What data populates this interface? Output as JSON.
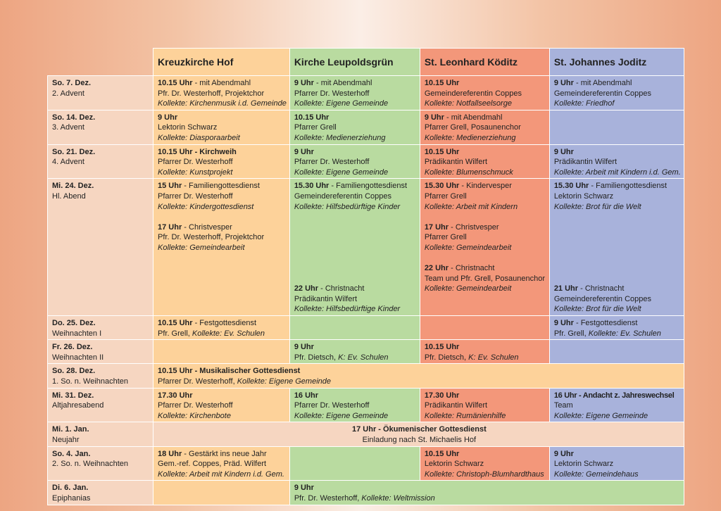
{
  "headers": [
    "Kreuzkirche Hof",
    "Kirche Leupoldsgrün",
    "St. Leonhard Köditz",
    "St. Johannes Joditz"
  ],
  "rows": [
    {
      "date": "So. 7. Dez.",
      "sub": "2. Advent",
      "k": {
        "time": "10.15 Uhr",
        "note": " -  mit Abendmahl",
        "lines": [
          "Pfr. Dr. Westerhoff, Projektchor"
        ],
        "coll": "Kollekte: Kirchenmusik i.d. Gemeinde"
      },
      "l": {
        "time": "9 Uhr",
        "note": " - mit Abendmahl",
        "lines": [
          "Pfarrer Dr. Westerhoff"
        ],
        "coll": "Kollekte: Eigene Gemeinde"
      },
      "sl": {
        "time": "10.15 Uhr",
        "note": "",
        "lines": [
          "Gemeindereferentin Coppes"
        ],
        "coll": "Kollekte: Notfallseelsorge"
      },
      "sj": {
        "time": "9 Uhr",
        "note": " - mit Abendmahl",
        "lines": [
          "Gemeindereferentin Coppes"
        ],
        "coll": "Kollekte: Friedhof"
      }
    },
    {
      "date": "So. 14. Dez.",
      "sub": "3. Advent",
      "k": {
        "time": "9 Uhr",
        "note": "",
        "lines": [
          "Lektorin Schwarz"
        ],
        "coll": "Kollekte: Diasporaarbeit"
      },
      "l": {
        "time": "10.15 Uhr",
        "note": "",
        "lines": [
          "Pfarrer Grell"
        ],
        "coll": "Kollekte: Medienerziehung"
      },
      "sl": {
        "time": "9 Uhr",
        "note": " - mit Abendmahl",
        "lines": [
          "Pfarrer Grell, Posaunenchor"
        ],
        "coll": "Kollekte: Medienerziehung"
      }
    },
    {
      "date": "So. 21. Dez.",
      "sub": "4. Advent",
      "k": {
        "time": "10.15 Uhr - Kirchweih",
        "note": "",
        "lines": [
          "Pfarrer Dr. Westerhoff"
        ],
        "coll": "Kollekte: Kunstprojekt"
      },
      "l": {
        "time": "9 Uhr",
        "note": "",
        "lines": [
          "Pfarrer Dr. Westerhoff"
        ],
        "coll": "Kollekte: Eigene Gemeinde"
      },
      "sl": {
        "time": "10.15 Uhr",
        "note": "",
        "lines": [
          "Prädikantin Wilfert"
        ],
        "coll": "Kollekte: Blumenschmuck"
      },
      "sj": {
        "time": "9 Uhr",
        "note": "",
        "lines": [
          "Prädikantin Wilfert"
        ],
        "coll": "Kollekte: Arbeit mit Kindern i.d. Gem."
      }
    },
    {
      "date": "Mi. 24. Dez.",
      "sub": "Hl. Abend",
      "k1": {
        "time": "15 Uhr",
        "note": " - Familiengottesdienst",
        "lines": [
          "Pfarrer Dr. Westerhoff"
        ],
        "coll": "Kollekte: Kindergottesdienst"
      },
      "k2": {
        "time": "17 Uhr",
        "note": " - Christvesper",
        "lines": [
          "Pfr. Dr. Westerhoff, Projektchor"
        ],
        "coll": "Kollekte: Gemeindearbeit"
      },
      "l1": {
        "time": "15.30 Uhr",
        "note": " - Familiengottesdienst",
        "lines": [
          "Gemeindereferentin Coppes"
        ],
        "coll": "Kollekte: Hilfsbedürftige Kinder"
      },
      "l2": {
        "time": "22 Uhr",
        "note": " - Christnacht",
        "lines": [
          "Prädikantin Wilfert"
        ],
        "coll": "Kollekte: Hilfsbedürftige Kinder"
      },
      "sl1": {
        "time": "15.30 Uhr",
        "note": " - Kindervesper",
        "lines": [
          "Pfarrer Grell"
        ],
        "coll": "Kollekte: Arbeit mit Kindern"
      },
      "sl2": {
        "time": "17 Uhr",
        "note": " - Christvesper",
        "lines": [
          "Pfarrer Grell"
        ],
        "coll": "Kollekte: Gemeindearbeit"
      },
      "sl3": {
        "time": "22 Uhr",
        "note": " - Christnacht",
        "lines": [
          "Team und Pfr. Grell, Posaunenchor"
        ],
        "coll": "Kollekte: Gemeindearbeit"
      },
      "sj1": {
        "time": "15.30 Uhr",
        "note": " - Familiengottesdienst",
        "lines": [
          "Lektorin Schwarz"
        ],
        "coll": "Kollekte: Brot für die Welt"
      },
      "sj2": {
        "time": "21 Uhr",
        "note": " - Christnacht",
        "lines": [
          "Gemeindereferentin Coppes"
        ],
        "coll": "Kollekte: Brot für die Welt"
      }
    },
    {
      "date": "Do. 25. Dez.",
      "sub": "Weihnachten I",
      "k": {
        "time": "10.15 Uhr",
        "note": " - Festgottesdienst",
        "lead": "Pfr. Grell, ",
        "coll": "Kollekte: Ev. Schulen"
      },
      "sj": {
        "time": "9 Uhr",
        "note": " - Festgottesdienst",
        "lead": "Pfr. Grell, ",
        "coll": "Kollekte: Ev. Schulen"
      }
    },
    {
      "date": "Fr. 26. Dez.",
      "sub": "Weihnachten II",
      "l": {
        "time": "9 Uhr",
        "note": "",
        "lead": "Pfr. Dietsch, ",
        "coll": "K: Ev. Schulen"
      },
      "sl": {
        "time": "10.15 Uhr",
        "note": "",
        "lead": "Pfr. Dietsch, ",
        "coll": "K: Ev. Schulen"
      }
    },
    {
      "date": "So. 28. Dez.",
      "sub": "1. So. n. Weihnachten",
      "all": {
        "time": "10.15 Uhr - Musikalischer Gottesdienst",
        "lead": "Pfarrer Dr. Westerhoff, ",
        "coll": "Kollekte: Eigene Gemeinde"
      }
    },
    {
      "date": "Mi. 31. Dez.",
      "sub": "Altjahresabend",
      "k": {
        "time": "17.30 Uhr",
        "note": "",
        "lines": [
          "Pfarrer Dr. Westerhoff"
        ],
        "coll": "Kollekte: Kirchenbote"
      },
      "l": {
        "time": "16 Uhr",
        "note": "",
        "lines": [
          "Pfarrer Dr. Westerhoff"
        ],
        "coll": "Kollekte: Eigene Gemeinde"
      },
      "sl": {
        "time": "17.30 Uhr",
        "note": "",
        "lines": [
          "Prädikantin Wilfert"
        ],
        "coll": "Kollekte: Rumänienhilfe"
      },
      "sj": {
        "time": "16 Uhr - Andacht z. Jahreswechsel",
        "note": "",
        "lines": [
          "Team"
        ],
        "coll": "Kollekte: Eigene Gemeinde"
      }
    },
    {
      "date": "Mi. 1. Jan.",
      "sub": "Neujahr",
      "all": {
        "time": "17 Uhr - Ökumenischer Gottesdienst",
        "line": "Einladung nach St. Michaelis Hof"
      }
    },
    {
      "date": "So. 4. Jan.",
      "sub": "2. So. n. Weihnachten",
      "k": {
        "time": "18 Uhr",
        "note": " - Gestärkt ins neue Jahr",
        "lines": [
          "Gem.-ref. Coppes, Präd. Wilfert"
        ],
        "coll": "Kollekte: Arbeit mit Kindern i.d. Gem."
      },
      "sl": {
        "time": "10.15 Uhr",
        "note": "",
        "lines": [
          "Lektorin Schwarz"
        ],
        "coll": "Kollekte: Christoph-Blumhardthaus"
      },
      "sj": {
        "time": "9 Uhr",
        "note": "",
        "lines": [
          "Lektorin Schwarz"
        ],
        "coll": "Kollekte: Gemeindehaus"
      }
    },
    {
      "date": "Di. 6. Jan.",
      "sub": "Epiphanias",
      "all": {
        "time": "9 Uhr",
        "lead": "Pfr. Dr. Westerhoff, ",
        "coll": "Kollekte: Weltmission"
      }
    }
  ]
}
